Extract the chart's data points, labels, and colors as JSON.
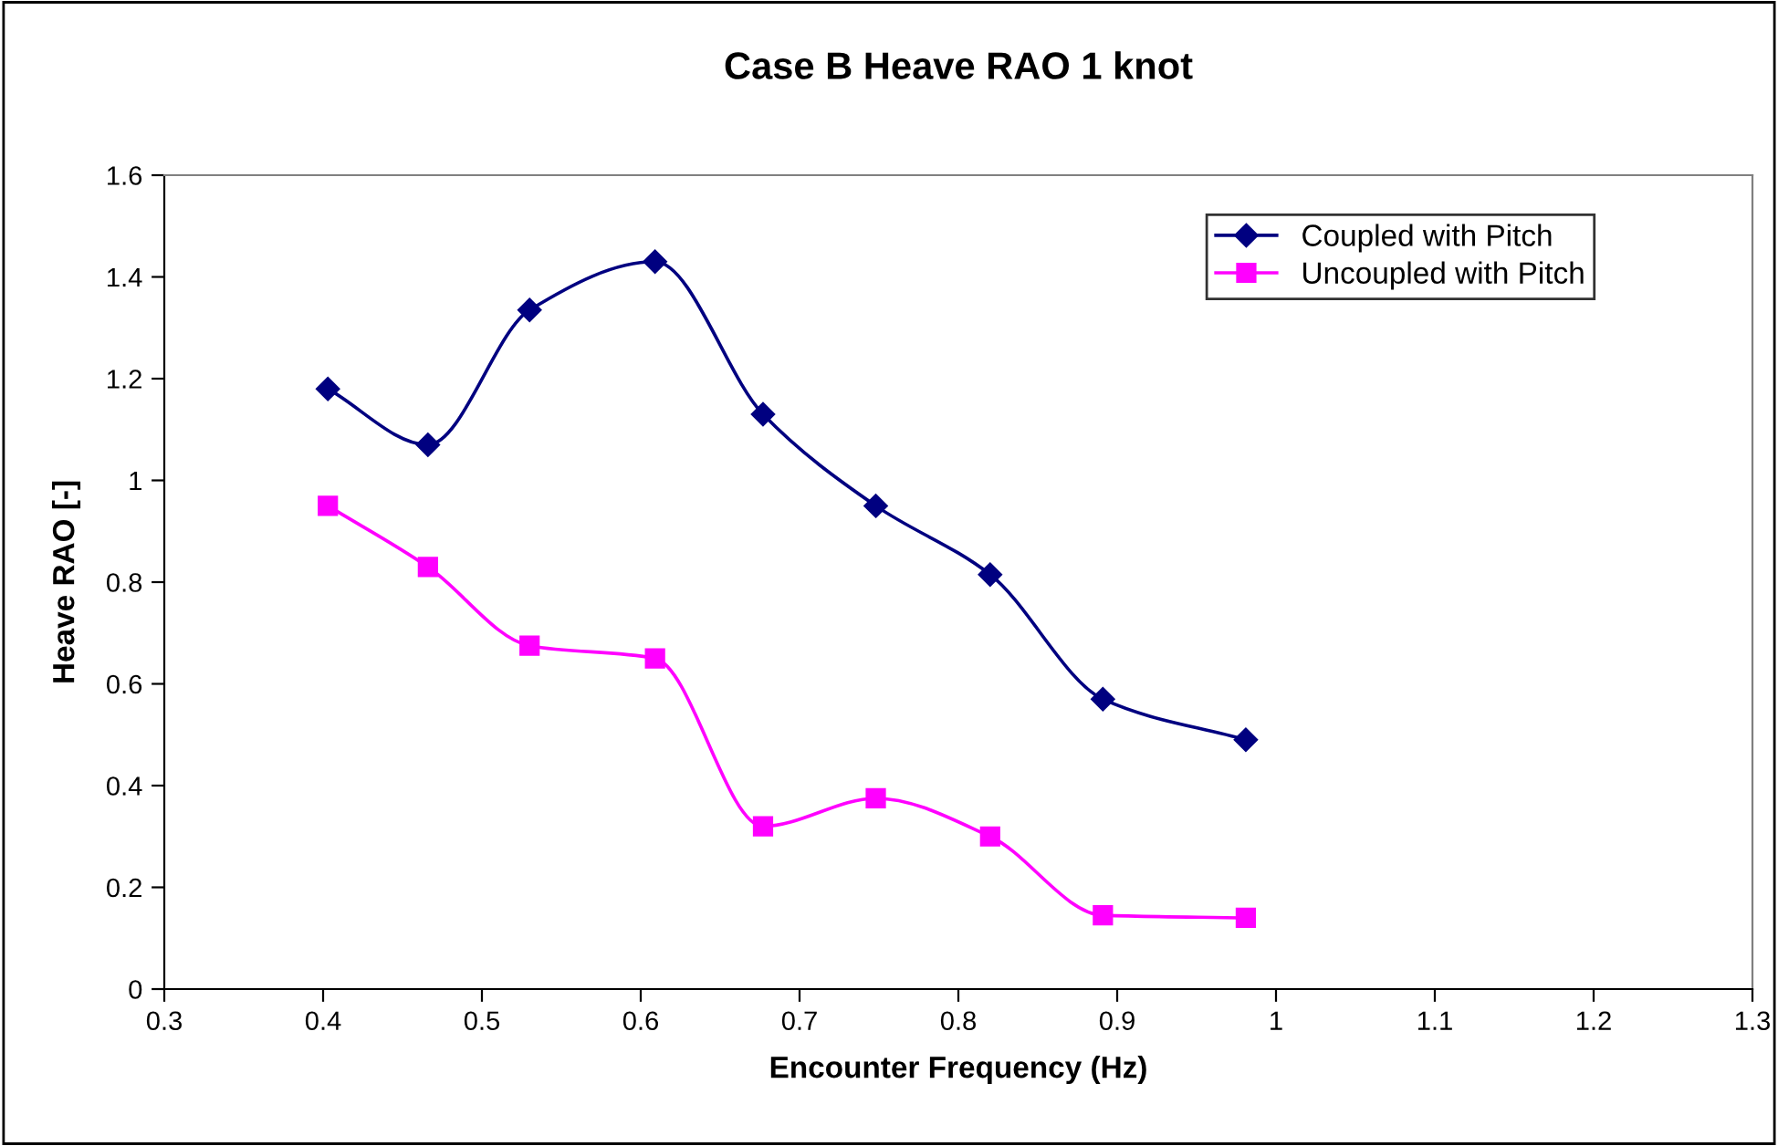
{
  "chart_data": {
    "type": "line",
    "title": "Case B Heave RAO 1 knot",
    "xlabel": "Encounter Frequency (Hz)",
    "ylabel": "Heave RAO [-]",
    "x": [
      0.403,
      0.466,
      0.53,
      0.609,
      0.677,
      0.748,
      0.82,
      0.891,
      0.981
    ],
    "series": [
      {
        "name": "Coupled with Pitch",
        "color": "#000080",
        "marker": "diamond",
        "values": [
          1.18,
          1.07,
          1.335,
          1.43,
          1.13,
          0.95,
          0.815,
          0.57,
          0.49
        ]
      },
      {
        "name": "Uncoupled with Pitch",
        "color": "#ff00ff",
        "marker": "square",
        "values": [
          0.95,
          0.83,
          0.675,
          0.65,
          0.32,
          0.375,
          0.3,
          0.145,
          0.14
        ]
      }
    ],
    "xlim": [
      0.3,
      1.3
    ],
    "xticks": [
      0.3,
      0.4,
      0.5,
      0.6,
      0.7,
      0.8,
      0.9,
      1,
      1.1,
      1.2,
      1.3
    ],
    "ylim": [
      0,
      1.6
    ],
    "yticks": [
      0,
      0.2,
      0.4,
      0.6,
      0.8,
      1,
      1.2,
      1.4,
      1.6
    ],
    "grid": false,
    "legend": "top right",
    "line_style": "solid"
  }
}
